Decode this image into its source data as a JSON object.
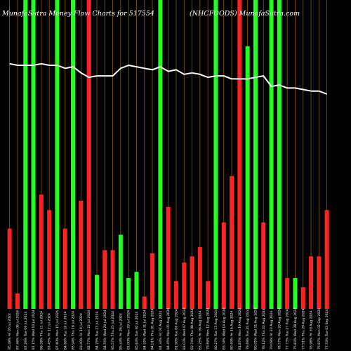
{
  "chart_data": {
    "type": "bar",
    "title_left": "MunafaSutra  Money Flow  Charts for 517554",
    "title_right": "(NHCFOODS) MunafaSutra.com",
    "colors": {
      "background": "#000000",
      "up": "#22ff22",
      "down": "#ff2222",
      "grid": "#8a5a10",
      "line": "#ffffff",
      "text": "#ffffff"
    },
    "categories": [
      "Fri 05 Jul 2024",
      "Mon 08 Jul 2024",
      "Tue 09 Jul 2024",
      "Wed 10 Jul 2024",
      "Thu 11 Jul 2024",
      "Fri 12 Jul 2024",
      "Mon 15 Jul 2024",
      "Tue 16 Jul 2024",
      "Thu 18 Jul 2024",
      "Fri 19 Jul 2024",
      "Mon 22 Jul 2024",
      "Tue 23 Jul 2024",
      "Wed 24 Jul 2024",
      "Thu 25 Jul 2024",
      "Fri 26 Jul 2024",
      "Mon 29 Jul 2024",
      "Tue 30 Jul 2024",
      "Wed 31 Jul 2024",
      "Thu 01 Aug 2024",
      "Fri 02 Aug 2024",
      "Mon 05 Aug 2024",
      "Tue 06 Aug 2024",
      "Wed 07 Aug 2024",
      "Thu 08 Aug 2024",
      "Fri 09 Aug 2024",
      "Mon 12 Aug 2024",
      "Tue 13 Aug 2024",
      "Wed 14 Aug 2024",
      "Fri 16 Aug 2024",
      "Mon 19 Aug 2024",
      "Tue 20 Aug 2024",
      "Wed 21 Aug 2024",
      "Thu 22 Aug 2024",
      "Fri 23 Aug 2024",
      "Mon 26 Aug 2024",
      "Tue 27 Aug 2024",
      "Wed 28 Aug 2024",
      "Thu 29 Aug 2024",
      "Fri 30 Aug 2024",
      "Mon 02 Sep 2024",
      "Tue 03 Sep 2024"
    ],
    "price_labels": [
      "95.48%",
      "87.46%",
      "87.26%",
      "87.15%",
      "86.58%",
      "87.45%",
      "87.60%",
      "84.66%",
      "85.94%",
      "83.40%",
      "82.77%",
      "84.25%",
      "84.55%",
      "85.57%",
      "85.44%",
      "81.00%",
      "85.63%",
      "84.55%",
      "84.91%",
      "84.34%",
      "84.45%",
      "81.90%",
      "83.03%",
      "83.74%",
      "83.25%",
      "79.69%",
      "80.27%",
      "83.34%",
      "80.49%",
      "81.87%",
      "79.69%",
      "80.05%",
      "78.12%",
      "79.09%",
      "78.57%",
      "77.73%",
      "75.83%",
      "77.51%",
      "76.98%",
      "75.87%",
      "77.53%"
    ],
    "flow_direction": [
      "down",
      "down",
      "up",
      "up",
      "down",
      "down",
      "up",
      "down",
      "up",
      "down",
      "down",
      "up",
      "down",
      "down",
      "up",
      "up",
      "up",
      "down",
      "down",
      "up",
      "down",
      "down",
      "down",
      "down",
      "down",
      "down",
      "up",
      "down",
      "down",
      "down",
      "up",
      "up",
      "down",
      "up",
      "up",
      "down",
      "up",
      "down",
      "down",
      "down",
      "down"
    ],
    "values": [
      26,
      5,
      100,
      100,
      37,
      32,
      100,
      26,
      100,
      35,
      100,
      11,
      19,
      19,
      24,
      10,
      12,
      4,
      18,
      100,
      33,
      9,
      15,
      17,
      20,
      9,
      100,
      28,
      43,
      100,
      85,
      100,
      28,
      100,
      100,
      10,
      10,
      7,
      17,
      17,
      32
    ],
    "price_line": [
      95,
      94,
      94,
      94,
      95,
      94,
      94,
      92,
      93,
      89,
      86,
      87,
      87,
      87,
      92,
      94,
      93,
      92,
      91,
      93,
      90,
      91,
      88,
      89,
      88,
      86,
      87,
      87,
      85,
      85,
      85,
      86,
      87,
      80,
      81,
      79,
      79,
      78,
      77,
      77,
      75
    ],
    "ylim": [
      0,
      100
    ],
    "price_ylim": [
      50,
      100
    ],
    "grid": true
  }
}
